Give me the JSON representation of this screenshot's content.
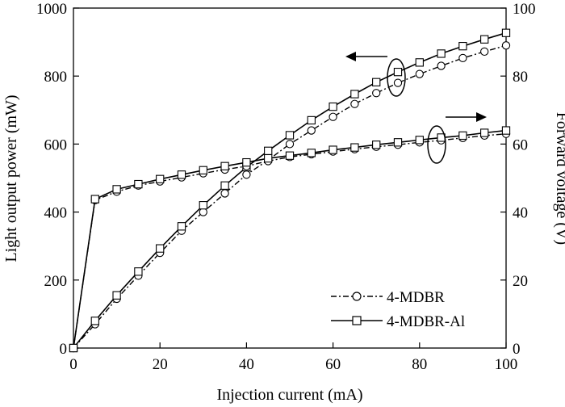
{
  "chart_data": {
    "type": "line",
    "xlabel": "Injection current (mA)",
    "ylabel_left": "Light output power (mW)",
    "ylabel_right": "Forward voltage (V)",
    "xlim": [
      0,
      100
    ],
    "ylim_left": [
      0,
      1000
    ],
    "ylim_right": [
      0,
      100
    ],
    "x_ticks": [
      "0",
      "20",
      "40",
      "60",
      "80",
      "100"
    ],
    "y_ticks_left": [
      "0",
      "200",
      "400",
      "600",
      "800",
      "1000"
    ],
    "y_ticks_right": [
      "0",
      "20",
      "40",
      "60",
      "80",
      "100"
    ],
    "grid": false,
    "legend_position": "bottom-right",
    "legend": [
      "4-MDBR",
      "4-MDBR-Al"
    ],
    "x": [
      0,
      5,
      10,
      15,
      20,
      25,
      30,
      35,
      40,
      45,
      50,
      55,
      60,
      65,
      70,
      75,
      80,
      85,
      90,
      95,
      100
    ],
    "series": [
      {
        "name": "4-MDBR",
        "axis": "left",
        "marker": "circle",
        "line": "dash-dot",
        "values": [
          0,
          70,
          145,
          213,
          280,
          345,
          400,
          455,
          510,
          553,
          600,
          640,
          680,
          718,
          750,
          780,
          806,
          830,
          853,
          872,
          890
        ]
      },
      {
        "name": "4-MDBR-Al",
        "axis": "left",
        "marker": "square",
        "line": "solid",
        "values": [
          0,
          80,
          155,
          225,
          293,
          358,
          420,
          478,
          532,
          580,
          626,
          670,
          710,
          747,
          782,
          812,
          840,
          866,
          888,
          908,
          927
        ]
      },
      {
        "name": "4-MDBR",
        "axis": "right",
        "marker": "circle",
        "line": "dash-dot",
        "values": [
          0,
          43.5,
          46.0,
          47.8,
          49.0,
          50.2,
          51.4,
          52.5,
          53.5,
          55.0,
          56.2,
          57.0,
          57.8,
          58.5,
          59.2,
          59.8,
          60.5,
          61.1,
          61.8,
          62.5,
          63.0
        ]
      },
      {
        "name": "4-MDBR-Al",
        "axis": "right",
        "marker": "square",
        "line": "solid",
        "values": [
          0,
          43.8,
          46.7,
          48.2,
          49.7,
          51.0,
          52.3,
          53.5,
          54.6,
          55.8,
          56.6,
          57.4,
          58.3,
          59.0,
          59.8,
          60.5,
          61.2,
          61.9,
          62.5,
          63.3,
          64.0
        ]
      }
    ]
  }
}
